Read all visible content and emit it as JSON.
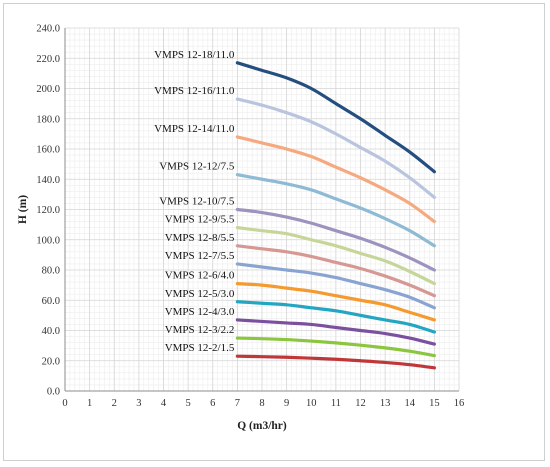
{
  "chart_data": {
    "type": "line",
    "xlabel": "Q (m3/hr)",
    "ylabel": "H (m)",
    "xlim": [
      0,
      16
    ],
    "ylim": [
      0,
      240
    ],
    "x_ticks": [
      "0",
      "1",
      "2",
      "3",
      "4",
      "5",
      "6",
      "7",
      "8",
      "9",
      "10",
      "11",
      "12",
      "13",
      "14",
      "15",
      "16"
    ],
    "y_ticks": [
      "0.0",
      "20.0",
      "40.0",
      "60.0",
      "80.0",
      "100.0",
      "120.0",
      "140.0",
      "160.0",
      "180.0",
      "200.0",
      "220.0",
      "240.0"
    ],
    "grid": true,
    "legend": "labels beside curves",
    "x": [
      7,
      8,
      9,
      10,
      11,
      12,
      13,
      14,
      15
    ],
    "series": [
      {
        "name": "VMPS 12-18/11.0",
        "color": "#244E7F",
        "values": [
          217,
          212,
          207,
          200,
          190,
          180,
          169,
          158,
          145
        ]
      },
      {
        "name": "VMPS 12-16/11.0",
        "color": "#B9C4DE",
        "values": [
          193,
          189,
          184,
          178,
          170,
          161,
          152,
          141,
          128
        ]
      },
      {
        "name": "VMPS 12-14/11.0",
        "color": "#F6A97E",
        "values": [
          168,
          164,
          160,
          155,
          148,
          141,
          133,
          124,
          112
        ]
      },
      {
        "name": "VMPS 12-12/7.5",
        "color": "#8EBAD4",
        "values": [
          143,
          140,
          137,
          133,
          127,
          121,
          114,
          106,
          96
        ]
      },
      {
        "name": "VMPS 12-10/7.5",
        "color": "#9E92BE",
        "values": [
          120,
          118,
          115,
          111,
          106,
          101,
          95,
          88,
          80
        ]
      },
      {
        "name": "VMPS 12-9/5.5",
        "color": "#C5D698",
        "values": [
          108,
          106,
          104,
          100,
          96,
          91,
          86,
          79,
          71
        ]
      },
      {
        "name": "VMPS 12-8/5.5",
        "color": "#D59893",
        "values": [
          96,
          94,
          92,
          89,
          85,
          81,
          76,
          70,
          63
        ]
      },
      {
        "name": "VMPS 12-7/5.5",
        "color": "#8AA4D2",
        "values": [
          84,
          82,
          80,
          78,
          75,
          71,
          67,
          62,
          55
        ]
      },
      {
        "name": "VMPS 12-6/4.0",
        "color": "#F59A2E",
        "values": [
          71,
          70,
          68,
          66,
          63,
          60,
          57,
          52,
          47
        ]
      },
      {
        "name": "VMPS 12-5/3.0",
        "color": "#22A6C2",
        "values": [
          59,
          58,
          57,
          55,
          53,
          50,
          47,
          44,
          39
        ]
      },
      {
        "name": "VMPS 12-4/3.0",
        "color": "#7B509E",
        "values": [
          47,
          46,
          45,
          44,
          42,
          40,
          38,
          35,
          31
        ]
      },
      {
        "name": "VMPS 12-3/2.2",
        "color": "#8CC63F",
        "values": [
          35,
          34.6,
          34,
          33,
          31.8,
          30.3,
          28.5,
          26.3,
          23.4
        ]
      },
      {
        "name": "VMPS 12-2/1.5",
        "color": "#C0373A",
        "values": [
          23,
          22.7,
          22.3,
          21.7,
          21,
          20,
          18.9,
          17.4,
          15.3
        ]
      }
    ]
  }
}
